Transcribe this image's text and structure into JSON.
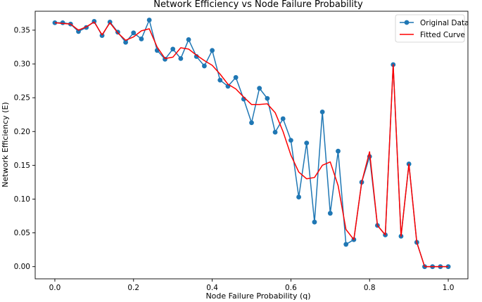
{
  "chart_data": {
    "type": "line",
    "title": "Network Efficiency vs Node Failure Probability",
    "xlabel": "Node Failure Probability (q)",
    "ylabel": "Network Efficiency (E)",
    "xlim": [
      -0.05,
      1.05
    ],
    "ylim": [
      -0.018,
      0.378
    ],
    "xticks": [
      0.0,
      0.2,
      0.4,
      0.6,
      0.8,
      1.0
    ],
    "xtick_labels": [
      "0.0",
      "0.2",
      "0.4",
      "0.6",
      "0.8",
      "1.0"
    ],
    "yticks": [
      0.0,
      0.05,
      0.1,
      0.15,
      0.2,
      0.25,
      0.3,
      0.35
    ],
    "ytick_labels": [
      "0.00",
      "0.05",
      "0.10",
      "0.15",
      "0.20",
      "0.25",
      "0.30",
      "0.35"
    ],
    "grid": false,
    "legend_position": "top-right",
    "x": [
      0.0,
      0.02,
      0.04,
      0.06,
      0.08,
      0.1,
      0.12,
      0.14,
      0.16,
      0.18,
      0.2,
      0.22,
      0.24,
      0.26,
      0.28,
      0.3,
      0.32,
      0.34,
      0.36,
      0.38,
      0.4,
      0.42,
      0.44,
      0.46,
      0.48,
      0.5,
      0.52,
      0.54,
      0.56,
      0.58,
      0.6,
      0.62,
      0.64,
      0.66,
      0.68,
      0.7,
      0.72,
      0.74,
      0.76,
      0.78,
      0.8,
      0.82,
      0.84,
      0.86,
      0.88,
      0.9,
      0.92,
      0.94,
      0.96,
      0.98,
      1.0
    ],
    "series": [
      {
        "name": "Original Data",
        "color": "#1f77b4",
        "marker": "circle",
        "values": [
          0.361,
          0.361,
          0.359,
          0.348,
          0.354,
          0.363,
          0.342,
          0.362,
          0.347,
          0.332,
          0.346,
          0.337,
          0.365,
          0.32,
          0.307,
          0.322,
          0.308,
          0.336,
          0.311,
          0.297,
          0.32,
          0.276,
          0.267,
          0.28,
          0.248,
          0.213,
          0.264,
          0.249,
          0.199,
          0.219,
          0.187,
          0.103,
          0.183,
          0.066,
          0.229,
          0.079,
          0.171,
          0.033,
          0.04,
          0.125,
          0.163,
          0.061,
          0.047,
          0.299,
          0.045,
          0.152,
          0.036,
          0.0,
          0.0,
          0.0,
          0.0
        ]
      },
      {
        "name": "Fitted Curve",
        "color": "#ff0000",
        "marker": "none",
        "values": [
          0.361,
          0.36,
          0.359,
          0.35,
          0.355,
          0.362,
          0.343,
          0.361,
          0.346,
          0.335,
          0.34,
          0.349,
          0.352,
          0.325,
          0.308,
          0.31,
          0.324,
          0.322,
          0.313,
          0.305,
          0.298,
          0.285,
          0.27,
          0.263,
          0.251,
          0.24,
          0.24,
          0.241,
          0.228,
          0.2,
          0.165,
          0.14,
          0.13,
          0.132,
          0.15,
          0.155,
          0.12,
          0.055,
          0.04,
          0.125,
          0.17,
          0.061,
          0.047,
          0.299,
          0.045,
          0.152,
          0.036,
          0.0,
          0.0,
          0.0,
          0.0
        ]
      }
    ]
  }
}
